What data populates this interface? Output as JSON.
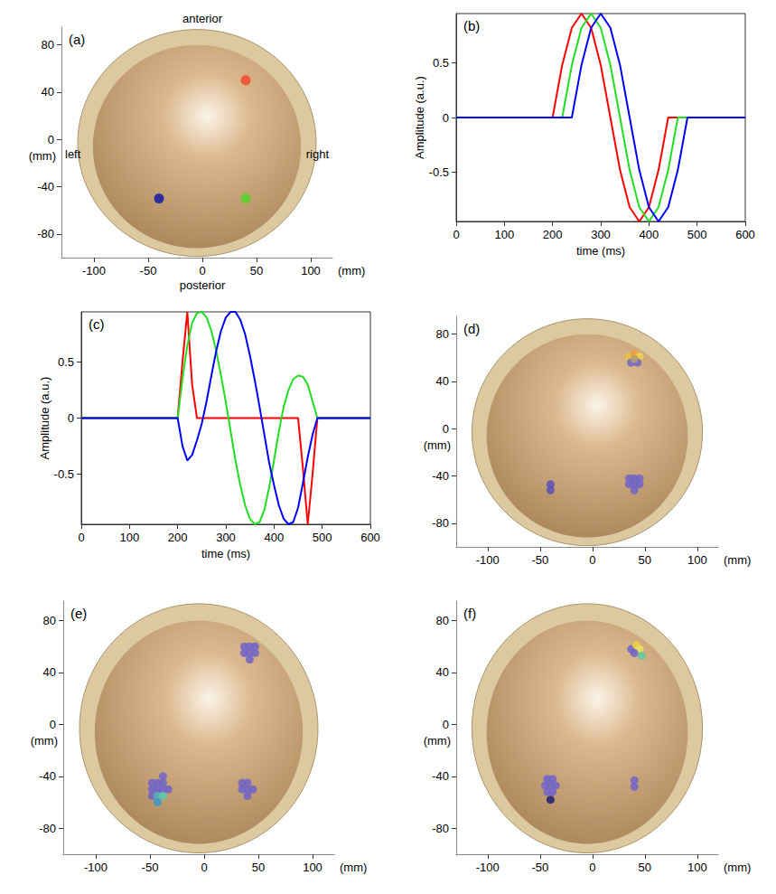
{
  "chart_data": [
    {
      "type": "scatter",
      "title": "(a)",
      "x_label": "(mm)",
      "y_label": "(mm)",
      "annotations": {
        "top": "anterior",
        "bottom": "posterior",
        "left": "left",
        "right": "right"
      },
      "x": [
        40,
        40,
        -40
      ],
      "values": [
        50,
        -50,
        -50
      ],
      "colors": [
        "#f05a3a",
        "#66cc33",
        "#2d2d9e"
      ],
      "xlim": [
        -130,
        120
      ],
      "ylim": [
        -100,
        95
      ],
      "xticks": [
        -100,
        -50,
        0,
        50,
        100
      ],
      "yticks": [
        -80,
        -40,
        0,
        40,
        80
      ],
      "grid": false,
      "marker": "circle"
    },
    {
      "type": "line",
      "title": "(b)",
      "x_label": "time (ms)",
      "y_label": "Amplitude (a.u.)",
      "x": [
        0,
        20,
        40,
        60,
        80,
        100,
        120,
        140,
        160,
        180,
        200,
        220,
        240,
        260,
        280,
        300,
        320,
        340,
        360,
        380,
        400,
        420,
        440,
        460,
        480,
        500,
        520,
        540,
        560,
        580,
        600
      ],
      "series": [
        {
          "color": "#ff0000",
          "values": [
            0,
            0,
            0,
            0,
            0,
            0,
            0,
            0,
            0,
            0,
            0,
            0.48,
            0.82,
            0.95,
            0.82,
            0.48,
            0,
            -0.48,
            -0.82,
            -0.95,
            -0.82,
            -0.48,
            0,
            0,
            0,
            0,
            0,
            0,
            0,
            0,
            0
          ]
        },
        {
          "color": "#22dd22",
          "values": [
            0,
            0,
            0,
            0,
            0,
            0,
            0,
            0,
            0,
            0,
            0,
            0,
            0.48,
            0.82,
            0.95,
            0.82,
            0.48,
            0,
            -0.48,
            -0.82,
            -0.95,
            -0.82,
            -0.48,
            0,
            0,
            0,
            0,
            0,
            0,
            0,
            0
          ]
        },
        {
          "color": "#0000ff",
          "values": [
            0,
            0,
            0,
            0,
            0,
            0,
            0,
            0,
            0,
            0,
            0,
            0,
            0,
            0.48,
            0.82,
            0.95,
            0.82,
            0.48,
            0,
            -0.48,
            -0.82,
            -0.95,
            -0.82,
            -0.48,
            0,
            0,
            0,
            0,
            0,
            0,
            0
          ]
        }
      ],
      "xlim": [
        0,
        600
      ],
      "ylim": [
        -0.95,
        0.95
      ],
      "xticks": [
        0,
        100,
        200,
        300,
        400,
        500,
        600
      ],
      "yticks": [
        -0.5,
        0,
        0.5
      ],
      "grid": false
    },
    {
      "type": "line",
      "title": "(c)",
      "x_label": "time (ms)",
      "y_label": "Amplitude (a.u.)",
      "x": [
        0,
        200,
        210,
        220,
        230,
        240,
        250,
        260,
        270,
        280,
        290,
        300,
        310,
        320,
        330,
        340,
        350,
        360,
        370,
        380,
        390,
        400,
        410,
        420,
        430,
        440,
        450,
        460,
        470,
        480,
        490,
        500,
        600
      ],
      "series": [
        {
          "color": "#ff0000",
          "values": [
            0,
            0,
            0.5,
            0.95,
            0.3,
            0,
            0,
            0,
            0,
            0,
            0,
            0,
            0,
            0,
            0,
            0,
            0,
            0,
            0,
            0,
            0,
            0,
            0,
            0,
            0,
            0,
            0,
            -0.45,
            -0.95,
            -0.5,
            0,
            0,
            0
          ]
        },
        {
          "color": "#22dd22",
          "values": [
            0,
            0,
            0.35,
            0.65,
            0.85,
            0.94,
            0.95,
            0.9,
            0.78,
            0.6,
            0.38,
            0.14,
            -0.12,
            -0.38,
            -0.6,
            -0.78,
            -0.9,
            -0.95,
            -0.93,
            -0.82,
            -0.62,
            -0.38,
            -0.12,
            0.1,
            0.25,
            0.35,
            0.38,
            0.37,
            0.3,
            0.15,
            0,
            0,
            0
          ]
        },
        {
          "color": "#0000ff",
          "values": [
            0,
            0,
            -0.25,
            -0.38,
            -0.33,
            -0.2,
            -0.05,
            0.15,
            0.38,
            0.6,
            0.78,
            0.9,
            0.95,
            0.95,
            0.88,
            0.75,
            0.56,
            0.34,
            0.1,
            -0.15,
            -0.4,
            -0.6,
            -0.78,
            -0.9,
            -0.95,
            -0.93,
            -0.8,
            -0.58,
            -0.35,
            -0.15,
            0,
            0,
            0
          ]
        }
      ],
      "xlim": [
        0,
        600
      ],
      "ylim": [
        -0.95,
        0.95
      ],
      "xticks": [
        0,
        100,
        200,
        300,
        400,
        500,
        600
      ],
      "yticks": [
        -0.5,
        0,
        0.5
      ],
      "grid": false
    },
    {
      "type": "scatter",
      "title": "(d)",
      "x_label": "(mm)",
      "y_label": "(mm)",
      "x": [
        35,
        40,
        45,
        37,
        43,
        40,
        35,
        40,
        45,
        35,
        40,
        45,
        40,
        -40,
        -40
      ],
      "values": [
        61,
        63,
        61,
        56,
        56,
        59,
        -42,
        -42,
        -42,
        -47,
        -47,
        -47,
        -52,
        -47,
        -52
      ],
      "colors": [
        "#e8c440",
        "#f0a030",
        "#f5d050",
        "#7064c8",
        "#7064c8",
        "#b0a070",
        "#7064c8",
        "#7064c8",
        "#7064c8",
        "#7064c8",
        "#7064c8",
        "#7064c8",
        "#7064c8",
        "#5a50b8",
        "#5a50b8"
      ],
      "xlim": [
        -130,
        120
      ],
      "ylim": [
        -100,
        95
      ],
      "xticks": [
        -100,
        -50,
        0,
        50,
        100
      ],
      "yticks": [
        -80,
        -40,
        0,
        40,
        80
      ],
      "grid": false,
      "marker": "circle"
    },
    {
      "type": "scatter",
      "title": "(e)",
      "x_label": "(mm)",
      "y_label": "(mm)",
      "x": [
        37,
        42,
        47,
        37,
        42,
        47,
        42,
        -48,
        -43,
        -38,
        -48,
        -43,
        -38,
        -33,
        -48,
        -43,
        -38,
        -43,
        -38,
        35,
        40,
        45,
        35,
        40,
        40
      ],
      "values": [
        60,
        60,
        60,
        55,
        55,
        55,
        50,
        -45,
        -45,
        -45,
        -50,
        -50,
        -50,
        -50,
        -55,
        -55,
        -55,
        -60,
        -40,
        -45,
        -45,
        -50,
        -50,
        -50,
        -55
      ],
      "colors": [
        "#7064c8",
        "#7064c8",
        "#7064c8",
        "#7064c8",
        "#7064c8",
        "#7064c8",
        "#7064c8",
        "#7064c8",
        "#7064c8",
        "#7064c8",
        "#7064c8",
        "#7064c8",
        "#7064c8",
        "#7064c8",
        "#7064c8",
        "#4fb0b8",
        "#5cc8b0",
        "#3a9ac8",
        "#7064c8",
        "#7064c8",
        "#7064c8",
        "#7064c8",
        "#7064c8",
        "#7064c8",
        "#7064c8"
      ],
      "xlim": [
        -130,
        120
      ],
      "ylim": [
        -100,
        95
      ],
      "xticks": [
        -100,
        -50,
        0,
        50,
        100
      ],
      "yticks": [
        -80,
        -40,
        0,
        40,
        80
      ],
      "grid": false,
      "marker": "circle"
    },
    {
      "type": "scatter",
      "title": "(f)",
      "x_label": "(mm)",
      "y_label": "(mm)",
      "x": [
        37,
        42,
        45,
        40,
        47,
        -43,
        -38,
        -45,
        -40,
        -35,
        -43,
        -38,
        -40,
        40,
        40
      ],
      "values": [
        58,
        61,
        58,
        55,
        53,
        -42,
        -42,
        -47,
        -47,
        -47,
        -52,
        -52,
        -58,
        -43,
        -48
      ],
      "colors": [
        "#7064c8",
        "#f0d040",
        "#e8e060",
        "#7064c8",
        "#60c8a0",
        "#7064c8",
        "#7064c8",
        "#7064c8",
        "#7064c8",
        "#7064c8",
        "#7064c8",
        "#7064c8",
        "#1e1e6e",
        "#7064c8",
        "#7064c8"
      ],
      "xlim": [
        -130,
        120
      ],
      "ylim": [
        -100,
        95
      ],
      "xticks": [
        -100,
        -50,
        0,
        50,
        100
      ],
      "yticks": [
        -80,
        -40,
        0,
        40,
        80
      ],
      "grid": false,
      "marker": "circle"
    }
  ]
}
